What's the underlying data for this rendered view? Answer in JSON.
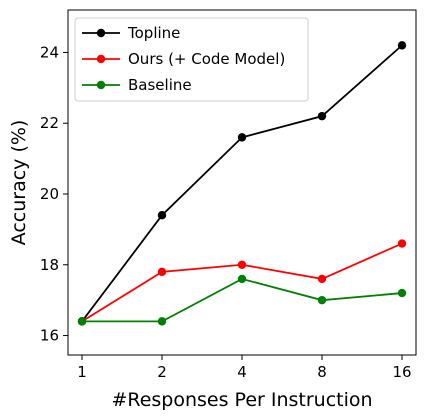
{
  "chart_data": {
    "type": "line",
    "xlabel": "#Responses Per Instruction",
    "ylabel": "Accuracy (%)",
    "categories": [
      "1",
      "2",
      "4",
      "8",
      "16"
    ],
    "ylim": [
      15.45,
      25.2
    ],
    "yticks": [
      16,
      18,
      20,
      22,
      24
    ],
    "grid": false,
    "legend_position": "top-left",
    "series": [
      {
        "name": "Topline",
        "color": "#000000",
        "values": [
          16.4,
          19.4,
          21.6,
          22.2,
          24.2
        ]
      },
      {
        "name": "Ours (+ Code Model)",
        "color": "#ff0000",
        "values": [
          16.4,
          17.8,
          18.0,
          17.6,
          18.6
        ]
      },
      {
        "name": "Baseline",
        "color": "#008000",
        "values": [
          16.4,
          16.4,
          17.6,
          17.0,
          17.2
        ]
      }
    ]
  }
}
